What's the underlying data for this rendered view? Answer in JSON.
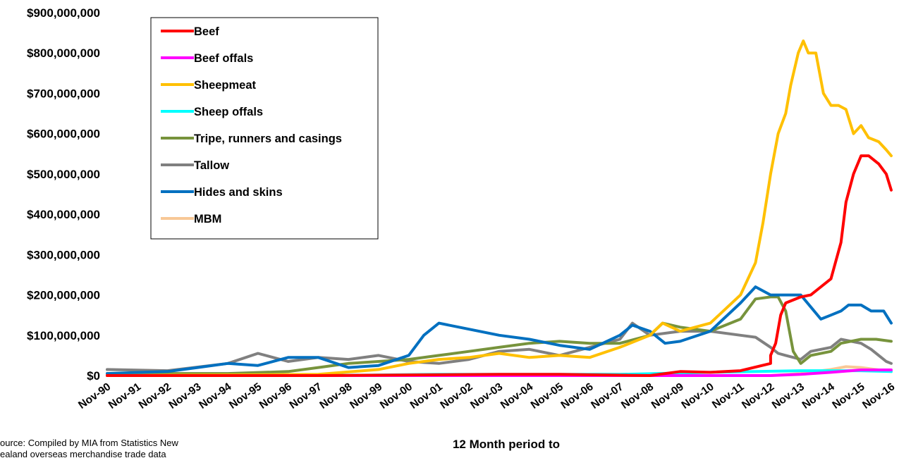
{
  "chart_data": {
    "type": "line",
    "xlabel": "12 Month period to",
    "ylabel": "",
    "source_line1": "ource: Compiled by MIA from Statistics New",
    "source_line2": "ealand overseas merchandise trade data",
    "ylim": [
      0,
      900000000
    ],
    "yticks": [
      "$0",
      "$100,000,000",
      "$200,000,000",
      "$300,000,000",
      "$400,000,000",
      "$500,000,000",
      "$600,000,000",
      "$700,000,000",
      "$800,000,000",
      "$900,000,000"
    ],
    "x_start": "Nov-90",
    "x_end": "Nov-16",
    "x_ticks": [
      "Nov-90",
      "Nov-91",
      "Nov-92",
      "Nov-93",
      "Nov-94",
      "Nov-95",
      "Nov-96",
      "Nov-97",
      "Nov-98",
      "Nov-99",
      "Nov-00",
      "Nov-01",
      "Nov-02",
      "Nov-03",
      "Nov-04",
      "Nov-05",
      "Nov-06",
      "Nov-07",
      "Nov-08",
      "Nov-09",
      "Nov-10",
      "Nov-11",
      "Nov-12",
      "Nov-13",
      "Nov-14",
      "Nov-15",
      "Nov-16"
    ],
    "legend_position": "top-left",
    "grid": false,
    "series": [
      {
        "name": "Beef",
        "color": "#ff0000",
        "x": [
          "Nov-90",
          "Nov-97",
          "Nov-03",
          "Nov-05",
          "Nov-08",
          "Nov-09",
          "Nov-10",
          "Nov-11",
          "Nov-12",
          "Nov-12",
          "Jan-13",
          "Mar-13",
          "May-13",
          "Nov-13",
          "Mar-14",
          "Jun-14",
          "Nov-14",
          "Mar-15",
          "May-15",
          "Aug-15",
          "Nov-15",
          "Feb-16",
          "Jun-16",
          "Sep-16",
          "Nov-16"
        ],
        "y": [
          0,
          0,
          3000000,
          3000000,
          0,
          10000000,
          8000000,
          12000000,
          30000000,
          50000000,
          80000000,
          150000000,
          180000000,
          195000000,
          200000000,
          215000000,
          240000000,
          330000000,
          430000000,
          500000000,
          545000000,
          545000000,
          525000000,
          500000000,
          460000000
        ]
      },
      {
        "name": "Beef offals",
        "color": "#ff00ff",
        "x": [
          "Nov-90",
          "Nov-12",
          "Nov-13",
          "Nov-14",
          "Nov-15",
          "Nov-16"
        ],
        "y": [
          0,
          0,
          3000000,
          8000000,
          14000000,
          14000000
        ]
      },
      {
        "name": "Sheepmeat",
        "color": "#ffc000",
        "x": [
          "Nov-90",
          "Nov-97",
          "Nov-99",
          "Nov-00",
          "Nov-01",
          "Nov-02",
          "Nov-03",
          "Nov-04",
          "Nov-05",
          "Nov-06",
          "Nov-07",
          "Nov-08",
          "Apr-09",
          "Nov-09",
          "Nov-10",
          "Nov-11",
          "May-12",
          "Aug-12",
          "Nov-12",
          "Feb-13",
          "May-13",
          "Jul-13",
          "Oct-13",
          "Dec-13",
          "Feb-14",
          "May-14",
          "Aug-14",
          "Nov-14",
          "Feb-15",
          "May-15",
          "Aug-15",
          "Nov-15",
          "Feb-16",
          "Jun-16",
          "Sep-16",
          "Nov-16"
        ],
        "y": [
          0,
          3000000,
          15000000,
          30000000,
          40000000,
          45000000,
          55000000,
          45000000,
          50000000,
          45000000,
          70000000,
          100000000,
          130000000,
          110000000,
          130000000,
          200000000,
          280000000,
          380000000,
          500000000,
          600000000,
          650000000,
          720000000,
          800000000,
          830000000,
          800000000,
          800000000,
          700000000,
          670000000,
          670000000,
          660000000,
          600000000,
          620000000,
          590000000,
          580000000,
          560000000,
          545000000
        ]
      },
      {
        "name": "Sheep offals",
        "color": "#00ffff",
        "x": [
          "Nov-90",
          "Nov-97",
          "Nov-01",
          "Nov-07",
          "Nov-10",
          "Nov-13",
          "Nov-15",
          "Nov-16"
        ],
        "y": [
          0,
          0,
          3000000,
          3000000,
          8000000,
          12000000,
          12000000,
          10000000
        ]
      },
      {
        "name": "Tripe, runners and casings",
        "color": "#77933c",
        "x": [
          "Nov-90",
          "Nov-94",
          "Nov-96",
          "Nov-97",
          "Nov-98",
          "Nov-99",
          "Nov-00",
          "Nov-01",
          "Nov-02",
          "Nov-03",
          "Nov-04",
          "Nov-05",
          "Nov-06",
          "Nov-07",
          "Nov-08",
          "Apr-09",
          "Nov-09",
          "Nov-10",
          "Nov-11",
          "May-12",
          "Nov-12",
          "Feb-13",
          "May-13",
          "Aug-13",
          "Nov-13",
          "Mar-14",
          "Nov-14",
          "Mar-15",
          "Nov-15",
          "May-16",
          "Nov-16"
        ],
        "y": [
          5000000,
          5000000,
          10000000,
          20000000,
          30000000,
          35000000,
          40000000,
          50000000,
          60000000,
          70000000,
          80000000,
          85000000,
          80000000,
          80000000,
          100000000,
          130000000,
          120000000,
          110000000,
          140000000,
          190000000,
          195000000,
          195000000,
          160000000,
          60000000,
          30000000,
          50000000,
          60000000,
          80000000,
          90000000,
          90000000,
          85000000
        ]
      },
      {
        "name": "Tallow",
        "color": "#808080",
        "x": [
          "Nov-90",
          "Nov-92",
          "Nov-94",
          "Nov-95",
          "Nov-96",
          "Nov-97",
          "Nov-98",
          "Nov-99",
          "Nov-00",
          "Nov-01",
          "Nov-02",
          "Nov-03",
          "Nov-04",
          "Nov-05",
          "Nov-06",
          "Nov-07",
          "Apr-08",
          "Nov-08",
          "Nov-09",
          "Nov-10",
          "Nov-11",
          "May-12",
          "Nov-12",
          "Feb-13",
          "May-13",
          "Nov-13",
          "Mar-14",
          "Nov-14",
          "Mar-15",
          "Nov-15",
          "Mar-16",
          "Sep-16",
          "Nov-16"
        ],
        "y": [
          15000000,
          12000000,
          30000000,
          55000000,
          35000000,
          45000000,
          40000000,
          50000000,
          35000000,
          30000000,
          40000000,
          60000000,
          65000000,
          50000000,
          70000000,
          90000000,
          130000000,
          100000000,
          110000000,
          110000000,
          100000000,
          95000000,
          70000000,
          55000000,
          50000000,
          40000000,
          60000000,
          70000000,
          90000000,
          80000000,
          65000000,
          35000000,
          30000000
        ]
      },
      {
        "name": "Hides and skins",
        "color": "#0070c0",
        "x": [
          "Nov-90",
          "Nov-92",
          "Nov-93",
          "Nov-94",
          "Nov-95",
          "Nov-96",
          "Nov-97",
          "Nov-98",
          "Nov-99",
          "Nov-00",
          "May-01",
          "Nov-01",
          "Nov-02",
          "Nov-03",
          "Nov-04",
          "Nov-05",
          "Nov-06",
          "Nov-07",
          "Apr-08",
          "Nov-08",
          "May-09",
          "Nov-09",
          "Nov-10",
          "Nov-11",
          "May-12",
          "Nov-12",
          "May-13",
          "Nov-13",
          "Mar-14",
          "Jul-14",
          "Nov-14",
          "Mar-15",
          "Jun-15",
          "Nov-15",
          "Mar-16",
          "Aug-16",
          "Nov-16"
        ],
        "y": [
          5000000,
          10000000,
          20000000,
          30000000,
          25000000,
          45000000,
          45000000,
          20000000,
          25000000,
          50000000,
          100000000,
          130000000,
          115000000,
          100000000,
          90000000,
          75000000,
          65000000,
          100000000,
          125000000,
          110000000,
          80000000,
          85000000,
          110000000,
          180000000,
          220000000,
          200000000,
          200000000,
          200000000,
          170000000,
          140000000,
          150000000,
          160000000,
          175000000,
          175000000,
          160000000,
          160000000,
          130000000
        ]
      },
      {
        "name": "MBM",
        "color": "#f8c896",
        "x": [
          "Nov-90",
          "Nov-12",
          "Nov-13",
          "Nov-14",
          "May-15",
          "Nov-15",
          "Nov-16"
        ],
        "y": [
          0,
          0,
          5000000,
          15000000,
          22000000,
          20000000,
          10000000
        ]
      }
    ]
  }
}
